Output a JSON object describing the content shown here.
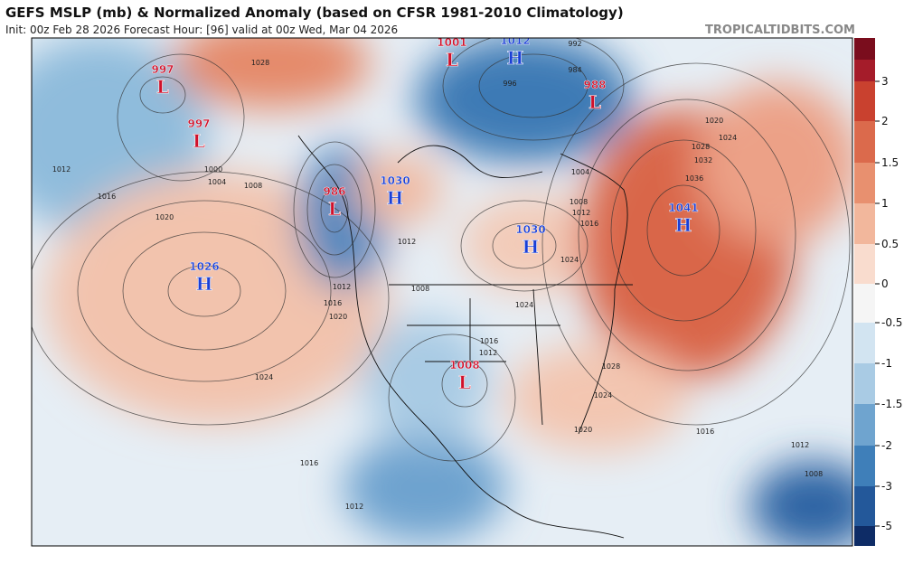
{
  "header": {
    "title": "GEFS MSLP (mb) & Normalized Anomaly (based on CFSR 1981-2010 Climatology)",
    "subtitle": "Init: 00z Feb 28 2026   Forecast Hour: [96]   valid at 00z Wed, Mar 04 2026",
    "site": "TROPICALTIDBITS.COM"
  },
  "colorbar": {
    "ticks": [
      3,
      2,
      1.5,
      1,
      0.5,
      0,
      -0.5,
      -1,
      -1.5,
      -2,
      -3,
      -5
    ]
  },
  "centers": [
    {
      "letter": "L",
      "pressure": 997
    },
    {
      "letter": "L",
      "pressure": 997
    },
    {
      "letter": "L",
      "pressure": 1001
    },
    {
      "letter": "H",
      "pressure": 1012
    },
    {
      "letter": "L",
      "pressure": 988
    },
    {
      "letter": "L",
      "pressure": 986
    },
    {
      "letter": "H",
      "pressure": 1030
    },
    {
      "letter": "H",
      "pressure": 1030
    },
    {
      "letter": "H",
      "pressure": 1041
    },
    {
      "letter": "H",
      "pressure": 1026
    },
    {
      "letter": "L",
      "pressure": 1008
    }
  ],
  "isobar_labels": [
    1028,
    1012,
    1016,
    1020,
    1000,
    1004,
    1008,
    1024,
    1016,
    1012,
    1012,
    1016,
    1020,
    1008,
    1012,
    1024,
    1028,
    1024,
    1020,
    1016,
    1012,
    1008,
    1020,
    1024,
    1028,
    1032,
    1036,
    1012,
    1016,
    1004,
    1008,
    1012,
    1016,
    1024,
    992,
    984,
    996
  ]
}
